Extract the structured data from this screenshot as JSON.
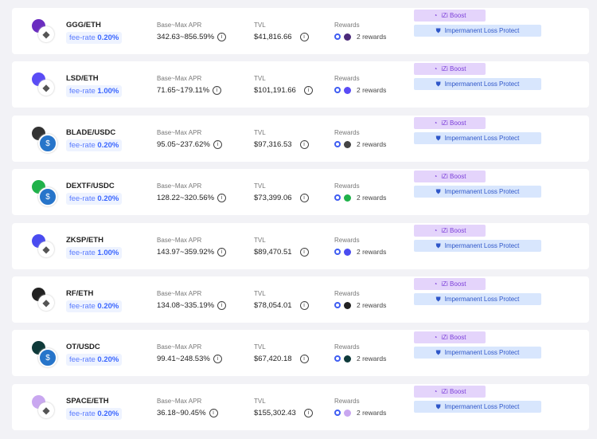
{
  "labels": {
    "apr": "Base~Max APR",
    "tvl": "TVL",
    "rewards": "Rewards",
    "fee_prefix": "fee-rate",
    "boost": "iZi Boost",
    "ilp": "Impermanent Loss Protect",
    "info": "i"
  },
  "pools": [
    {
      "pair": "GGG/ETH",
      "fee": "0.20%",
      "apr": "342.63~856.59%",
      "tvl": "$41,816.66",
      "rewards": "2 rewards",
      "color": "#6a2cc0",
      "quote": "ETH",
      "reward_color": "#4b2a7a"
    },
    {
      "pair": "LSD/ETH",
      "fee": "1.00%",
      "apr": "71.65~179.11%",
      "tvl": "$101,191.66",
      "rewards": "2 rewards",
      "color": "#5a4cf5",
      "quote": "ETH",
      "reward_color": "#5a4cf5"
    },
    {
      "pair": "BLADE/USDC",
      "fee": "0.20%",
      "apr": "95.05~237.62%",
      "tvl": "$97,316.53",
      "rewards": "2 rewards",
      "color": "#333",
      "quote": "USDC",
      "reward_color": "#444"
    },
    {
      "pair": "DEXTF/USDC",
      "fee": "0.20%",
      "apr": "128.22~320.56%",
      "tvl": "$73,399.06",
      "rewards": "2 rewards",
      "color": "#1fb24a",
      "quote": "USDC",
      "reward_color": "#1fb24a"
    },
    {
      "pair": "ZKSP/ETH",
      "fee": "1.00%",
      "apr": "143.97~359.92%",
      "tvl": "$89,470.51",
      "rewards": "2 rewards",
      "color": "#4a4cf0",
      "quote": "ETH",
      "reward_color": "#4a4cf0"
    },
    {
      "pair": "RF/ETH",
      "fee": "0.20%",
      "apr": "134.08~335.19%",
      "tvl": "$78,054.01",
      "rewards": "2 rewards",
      "color": "#222",
      "quote": "ETH",
      "reward_color": "#222"
    },
    {
      "pair": "OT/USDC",
      "fee": "0.20%",
      "apr": "99.41~248.53%",
      "tvl": "$67,420.18",
      "rewards": "2 rewards",
      "color": "#0e3a3a",
      "quote": "USDC",
      "reward_color": "#0e3a3a"
    },
    {
      "pair": "SPACE/ETH",
      "fee": "0.20%",
      "apr": "36.18~90.45%",
      "tvl": "$155,302.43",
      "rewards": "2 rewards",
      "color": "#c9a7f0",
      "quote": "ETH",
      "reward_color": "#c9a7f0"
    }
  ],
  "colors": {
    "izi": "#3f5df2"
  }
}
